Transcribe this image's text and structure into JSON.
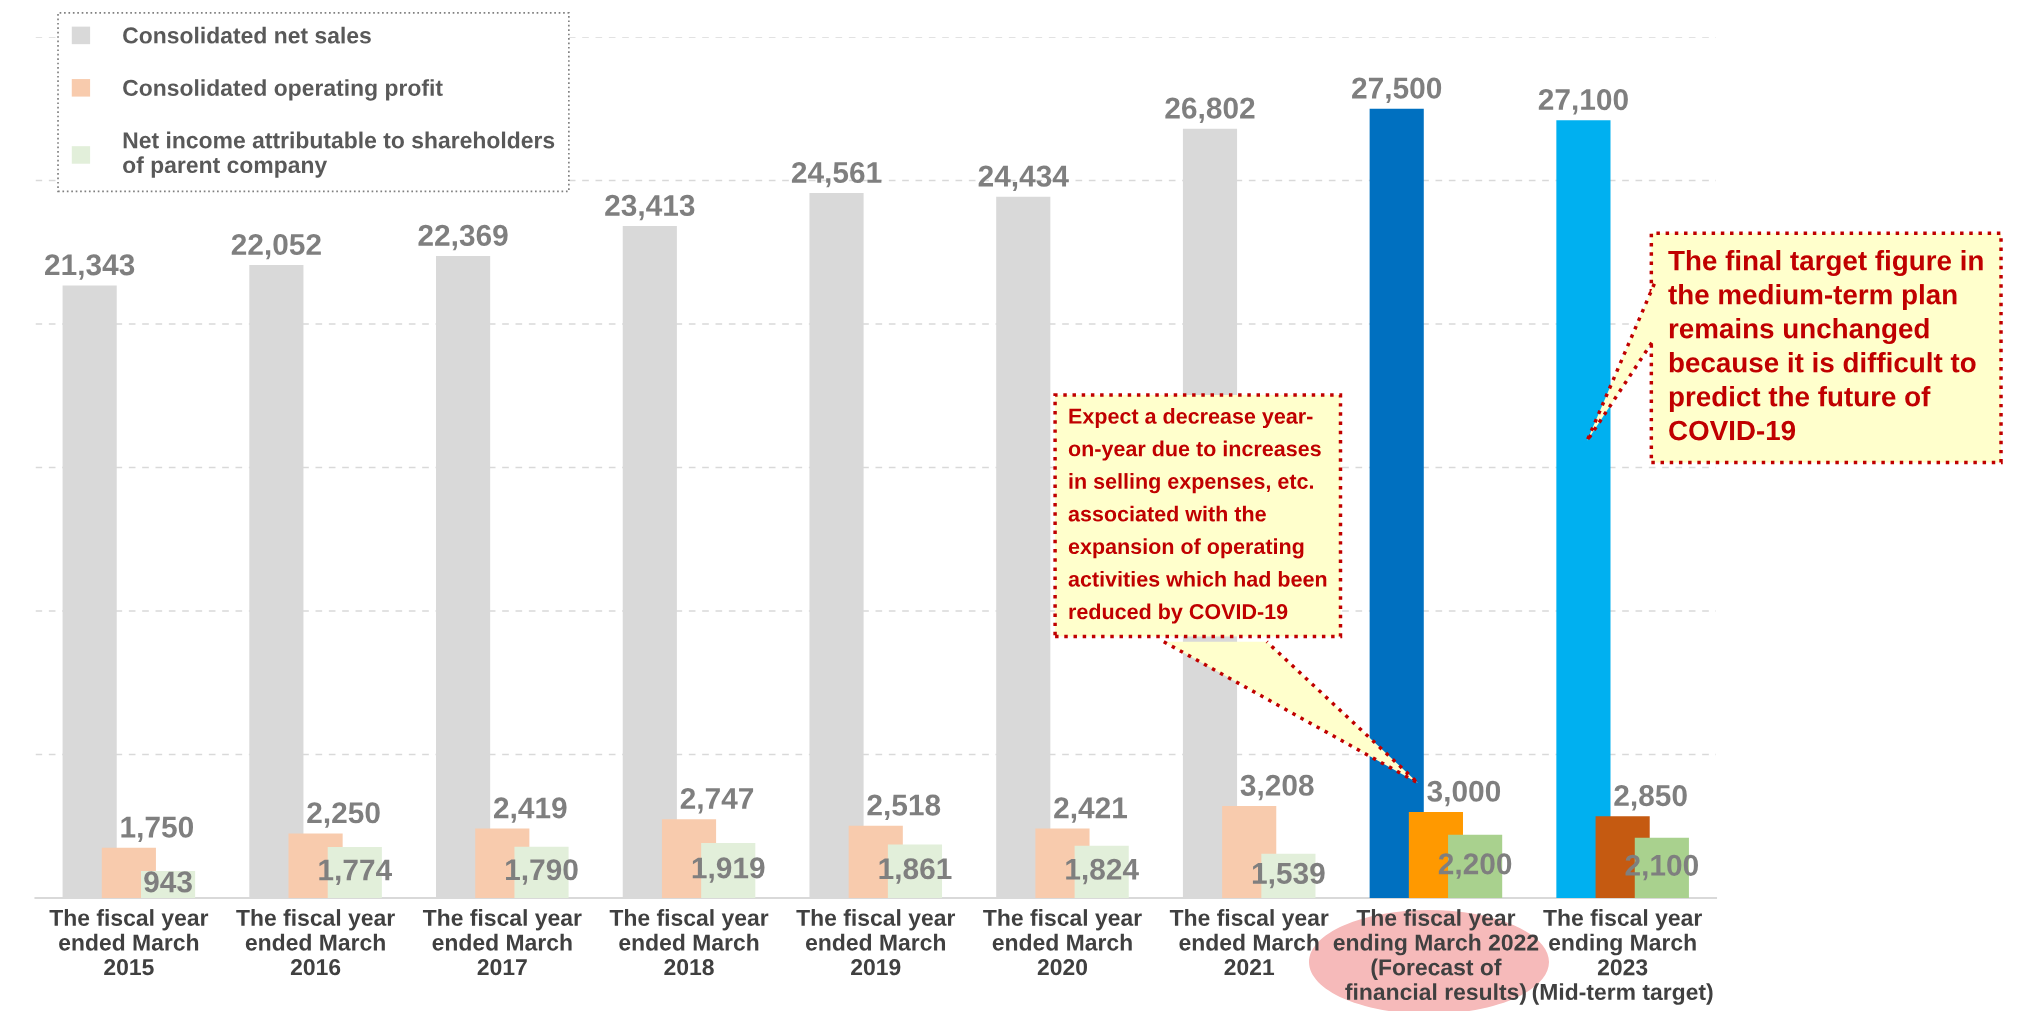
{
  "chart_data": {
    "type": "bar",
    "categories": [
      "The fiscal year\nended March\n2015",
      "The fiscal year\nended March\n2016",
      "The fiscal year\nended March\n2017",
      "The fiscal year\nended March\n2018",
      "The fiscal year\nended March\n2019",
      "The fiscal year\nended March\n2020",
      "The fiscal year\nended March\n2021",
      "The fiscal year\nending March 2022\n(Forecast of\nfinancial results)",
      "The fiscal year\nending March\n2023\n(Mid-term target)"
    ],
    "series": [
      {
        "name": "Consolidated net sales",
        "color": "#d9d9d9",
        "colors": [
          "#d9d9d9",
          "#d9d9d9",
          "#d9d9d9",
          "#d9d9d9",
          "#d9d9d9",
          "#d9d9d9",
          "#d9d9d9",
          "#0070c0",
          "#00b0f0"
        ],
        "values": [
          21343,
          22052,
          22369,
          23413,
          24561,
          24434,
          26802,
          27500,
          27100
        ],
        "value_labels": [
          "21,343",
          "22,052",
          "22,369",
          "23,413",
          "24,561",
          "24,434",
          "26,802",
          "27,500",
          "27,100"
        ]
      },
      {
        "name": "Consolidated operating profit",
        "color": "#f8cbad",
        "colors": [
          "#f8cbad",
          "#f8cbad",
          "#f8cbad",
          "#f8cbad",
          "#f8cbad",
          "#f8cbad",
          "#f8cbad",
          "#ff9900",
          "#c55a11"
        ],
        "values": [
          1750,
          2250,
          2419,
          2747,
          2518,
          2421,
          3208,
          3000,
          2850
        ],
        "value_labels": [
          "1,750",
          "2,250",
          "2,419",
          "2,747",
          "2,518",
          "2,421",
          "3,208",
          "3,000",
          "2,850"
        ]
      },
      {
        "name": "Net income attributable to shareholders\nof parent company",
        "color": "#e2efda",
        "colors": [
          "#e2efda",
          "#e2efda",
          "#e2efda",
          "#e2efda",
          "#e2efda",
          "#e2efda",
          "#e2efda",
          "#a9d18e",
          "#a9d18e"
        ],
        "values": [
          943,
          1774,
          1790,
          1919,
          1861,
          1824,
          1539,
          2200,
          2100
        ],
        "value_labels": [
          "943",
          "1,774",
          "1,790",
          "1,919",
          "1,861",
          "1,824",
          "1,539",
          "2,200",
          "2,100"
        ]
      }
    ],
    "ylim": [
      0,
      30000
    ],
    "yticks": [
      {
        "value": 0,
        "label": null
      },
      {
        "value": 5000,
        "label": null
      },
      {
        "value": 10000,
        "label": null
      },
      {
        "value": 15000,
        "label": null
      },
      {
        "value": 20000,
        "label": null
      },
      {
        "value": 25000,
        "label": null
      },
      {
        "value": 30000,
        "label": null
      }
    ],
    "tick_labels": "x",
    "grid": "y",
    "legend": "top left",
    "annotations": [
      "Expect a decrease year-\non-year due to increases\nin selling expenses, etc.\nassociated with the\nexpansion of operating\nactivities which had been\nreduced by COVID-19",
      "The final target figure in\nthe medium-term plan\nremains unchanged\nbecause it is difficult to\npredict the future of\nCOVID-19"
    ]
  }
}
